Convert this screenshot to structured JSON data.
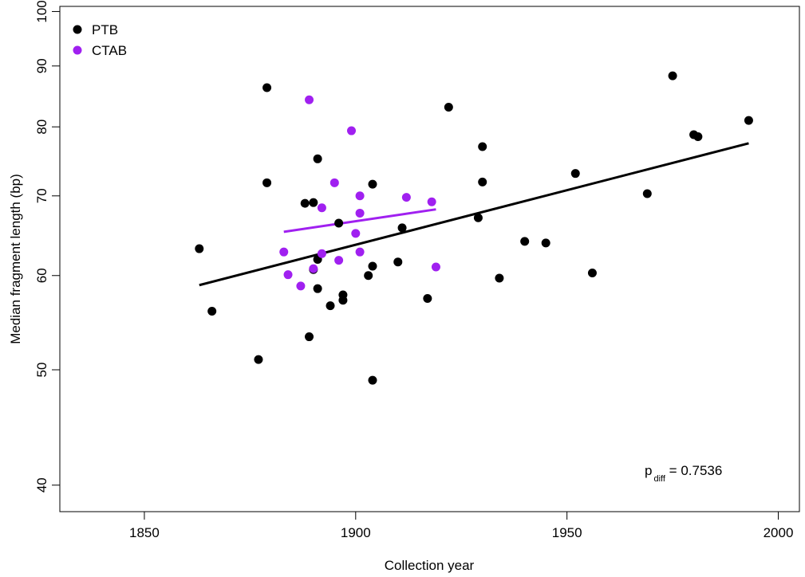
{
  "chart_data": {
    "type": "scatter",
    "xlabel": "Collection year",
    "ylabel": "Median fragment length (bp)",
    "y_scale": "log",
    "xlim": [
      1830,
      2005
    ],
    "ylim": [
      38,
      101
    ],
    "x_ticks": [
      1850,
      1900,
      1950,
      2000
    ],
    "y_ticks": [
      40,
      50,
      60,
      70,
      80,
      90,
      100
    ],
    "legend_position": "top-left",
    "annotation": {
      "p": "p",
      "sub": "diff",
      "rest": " = 0.7536"
    },
    "series": [
      {
        "name": "PTB",
        "color": "#000000",
        "points": [
          [
            1863,
            63.2
          ],
          [
            1866,
            56.0
          ],
          [
            1877,
            51.0
          ],
          [
            1879,
            86.3
          ],
          [
            1879,
            71.8
          ],
          [
            1888,
            69.0
          ],
          [
            1889,
            53.3
          ],
          [
            1890,
            69.1
          ],
          [
            1890,
            60.7
          ],
          [
            1891,
            58.5
          ],
          [
            1891,
            61.9
          ],
          [
            1891,
            75.2
          ],
          [
            1894,
            56.6
          ],
          [
            1896,
            66.4
          ],
          [
            1897,
            57.2
          ],
          [
            1897,
            57.8
          ],
          [
            1903,
            60.0
          ],
          [
            1904,
            61.1
          ],
          [
            1904,
            71.6
          ],
          [
            1904,
            49.0
          ],
          [
            1910,
            61.6
          ],
          [
            1911,
            65.8
          ],
          [
            1917,
            57.4
          ],
          [
            1922,
            83.1
          ],
          [
            1929,
            67.1
          ],
          [
            1930,
            77.0
          ],
          [
            1930,
            71.9
          ],
          [
            1934,
            59.7
          ],
          [
            1940,
            64.1
          ],
          [
            1945,
            63.9
          ],
          [
            1952,
            73.1
          ],
          [
            1956,
            60.3
          ],
          [
            1969,
            70.3
          ],
          [
            1975,
            88.3
          ],
          [
            1980,
            78.8
          ],
          [
            1981,
            78.5
          ],
          [
            1993,
            81.0
          ]
        ],
        "fit": {
          "x": [
            1863,
            1993
          ],
          "y": [
            58.9,
            77.5
          ]
        }
      },
      {
        "name": "CTAB",
        "color": "#a020f0",
        "points": [
          [
            1883,
            62.8
          ],
          [
            1884,
            60.1
          ],
          [
            1887,
            58.8
          ],
          [
            1889,
            84.3
          ],
          [
            1890,
            60.8
          ],
          [
            1892,
            68.4
          ],
          [
            1892,
            62.6
          ],
          [
            1895,
            71.8
          ],
          [
            1896,
            61.8
          ],
          [
            1899,
            79.4
          ],
          [
            1900,
            65.1
          ],
          [
            1901,
            70.0
          ],
          [
            1901,
            67.7
          ],
          [
            1901,
            62.8
          ],
          [
            1912,
            69.8
          ],
          [
            1918,
            69.2
          ],
          [
            1919,
            61.0
          ]
        ],
        "fit": {
          "x": [
            1883,
            1919
          ],
          "y": [
            65.3,
            68.2
          ]
        }
      }
    ]
  }
}
